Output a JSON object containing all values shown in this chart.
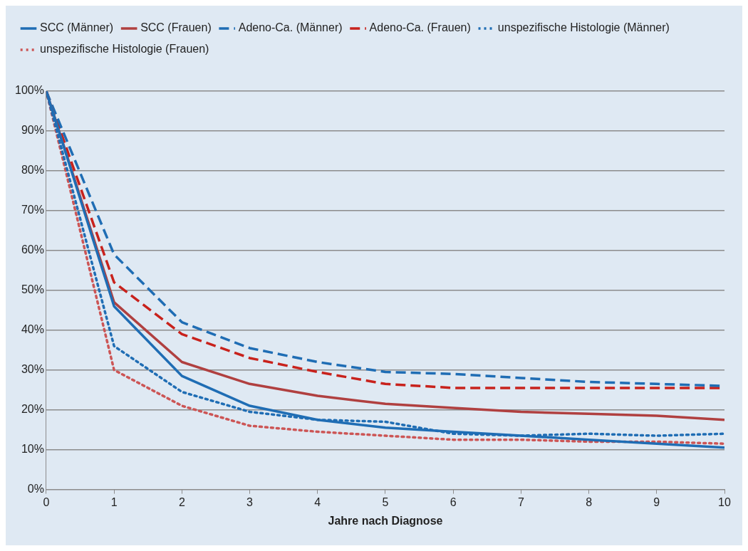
{
  "chart_data": {
    "type": "line",
    "xlabel": "Jahre nach Diagnose",
    "x": [
      0,
      1,
      2,
      3,
      4,
      5,
      6,
      7,
      8,
      9,
      10
    ],
    "xlim": [
      0,
      10
    ],
    "xticks": [
      0,
      1,
      2,
      3,
      4,
      5,
      6,
      7,
      8,
      9,
      10
    ],
    "ylim": [
      0,
      100
    ],
    "yticks": [
      {
        "value": 0,
        "label": "0%"
      },
      {
        "value": 10,
        "label": "10%"
      },
      {
        "value": 20,
        "label": "20%"
      },
      {
        "value": 30,
        "label": "30%"
      },
      {
        "value": 40,
        "label": "40%"
      },
      {
        "value": 50,
        "label": "50%"
      },
      {
        "value": 60,
        "label": "60%"
      },
      {
        "value": 70,
        "label": "70%"
      },
      {
        "value": 80,
        "label": "80%"
      },
      {
        "value": 90,
        "label": "90%"
      },
      {
        "value": 100,
        "label": "100%"
      }
    ],
    "grid": "y",
    "legend": "top",
    "marker": "none",
    "series": [
      {
        "name": "SCC (Männer)",
        "color": "#1f6db4",
        "line_style": "solid",
        "values": [
          100,
          46,
          28.5,
          21,
          17.5,
          15.5,
          14.5,
          13.5,
          12.5,
          11.5,
          10.5
        ]
      },
      {
        "name": "SCC (Frauen)",
        "color": "#b04040",
        "line_style": "solid",
        "values": [
          100,
          47,
          32,
          26.5,
          23.5,
          21.5,
          20.5,
          19.5,
          19,
          18.5,
          17.5
        ]
      },
      {
        "name": "Adeno-Ca. (Männer)",
        "color": "#1f6db4",
        "line_style": "dashed",
        "values": [
          100,
          59,
          42,
          35.5,
          32,
          29.5,
          29,
          28,
          27,
          26.5,
          26
        ]
      },
      {
        "name": "Adeno-Ca. (Frauen)",
        "color": "#c8221c",
        "line_style": "dashed",
        "values": [
          100,
          52,
          39,
          33,
          29.5,
          26.5,
          25.5,
          25.5,
          25.5,
          25.5,
          25.5
        ]
      },
      {
        "name": "unspezifische Histologie (Männer)",
        "color": "#1f6db4",
        "line_style": "dotted",
        "values": [
          100,
          36,
          24.5,
          19.5,
          17.5,
          17,
          14,
          13.5,
          14,
          13.5,
          14
        ]
      },
      {
        "name": "unspezifische Histologie (Frauen)",
        "color": "#cc5555",
        "line_style": "dotted",
        "values": [
          100,
          30,
          21,
          16,
          14.5,
          13.5,
          12.5,
          12.5,
          12,
          12,
          11.5
        ]
      }
    ]
  }
}
